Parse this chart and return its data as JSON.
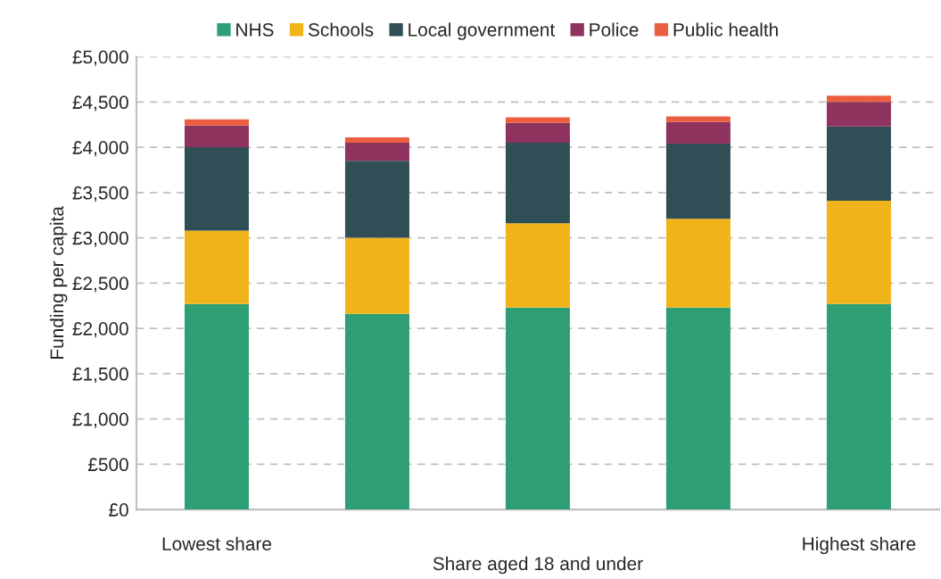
{
  "chart_data": {
    "type": "bar",
    "stacked": true,
    "xlabel": "Share aged 18 and under",
    "ylabel": "Funding per capita",
    "categories": [
      "Lowest share",
      null,
      null,
      null,
      "Highest share"
    ],
    "series": [
      {
        "name": "NHS",
        "color": "#2e9e74",
        "values": [
          2270,
          2160,
          2230,
          2230,
          2270
        ]
      },
      {
        "name": "Schools",
        "color": "#f0b41a",
        "values": [
          810,
          840,
          930,
          980,
          1140
        ]
      },
      {
        "name": "Local government",
        "color": "#304e55",
        "values": [
          920,
          850,
          890,
          830,
          820
        ]
      },
      {
        "name": "Police",
        "color": "#8e325e",
        "values": [
          240,
          200,
          220,
          240,
          270
        ]
      },
      {
        "name": "Public health",
        "color": "#eb5f40",
        "values": [
          70,
          60,
          60,
          60,
          70
        ]
      }
    ],
    "ylim": [
      0,
      5000
    ],
    "yticks": [
      {
        "value": 0,
        "label": "£0"
      },
      {
        "value": 500,
        "label": "£500"
      },
      {
        "value": 1000,
        "label": "£1,000"
      },
      {
        "value": 1500,
        "label": "£1,500"
      },
      {
        "value": 2000,
        "label": "£2,000"
      },
      {
        "value": 2500,
        "label": "£2,500"
      },
      {
        "value": 3000,
        "label": "£3,000"
      },
      {
        "value": 3500,
        "label": "£3,500"
      },
      {
        "value": 4000,
        "label": "£4,000"
      },
      {
        "value": 4500,
        "label": "£4,500"
      },
      {
        "value": 5000,
        "label": "£5,000"
      }
    ],
    "grid": "y",
    "legend": "top",
    "line_style": "dashed"
  }
}
